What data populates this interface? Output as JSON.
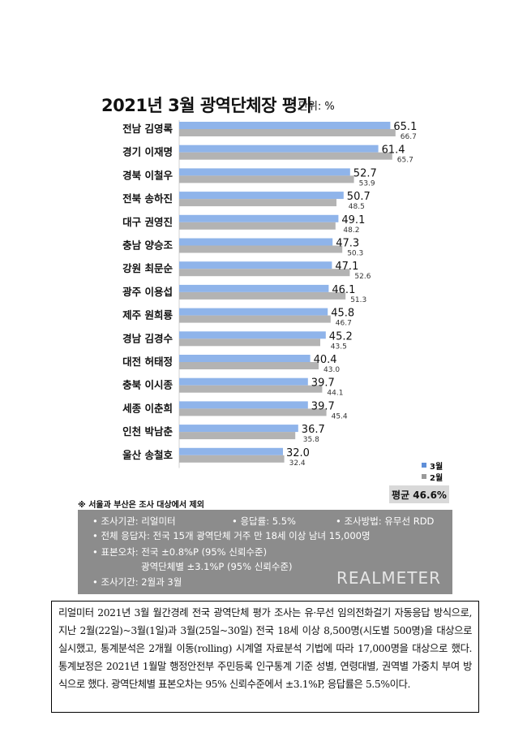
{
  "title": "2021년 3월 광역단체장 평가",
  "unit": "단위: %",
  "note": "※ 서울과 부산은 조사 대상에서 제외",
  "average": "평균 46.6%",
  "colors": {
    "march": "#8fb4ea",
    "february": "#b3b3b3",
    "info_bg": "#8c8c8c"
  },
  "legend": {
    "march": "3월",
    "february": "2월"
  },
  "chart_data": {
    "type": "bar",
    "orientation": "horizontal",
    "categories": [
      "전남 김영록",
      "경기 이재명",
      "경북 이철우",
      "전북 송하진",
      "대구 권영진",
      "충남 양승조",
      "강원 최문순",
      "광주 이용섭",
      "제주 원희룡",
      "경남 김경수",
      "대전 허태정",
      "충북 이시종",
      "세종 이춘희",
      "인천 박남춘",
      "울산 송철호"
    ],
    "series": [
      {
        "name": "3월",
        "values": [
          65.1,
          61.4,
          52.7,
          50.7,
          49.1,
          47.3,
          47.1,
          46.1,
          45.8,
          45.2,
          40.4,
          39.7,
          39.7,
          36.7,
          32.0
        ],
        "labels": [
          "65.1",
          "61.4",
          "52.7",
          "50.7",
          "49.1",
          "47.3",
          "47.1",
          "46.1",
          "45.8",
          "45.2",
          "40.4",
          "39.7",
          "39.7",
          "36.7",
          "32.0"
        ]
      },
      {
        "name": "2월",
        "values": [
          66.7,
          65.7,
          53.9,
          48.5,
          48.2,
          50.3,
          52.6,
          51.3,
          46.7,
          43.5,
          43.0,
          44.1,
          45.4,
          35.8,
          32.4
        ],
        "labels": [
          "66.7",
          "65.7",
          "53.9",
          "48.5",
          "48.2",
          "50.3",
          "52.6",
          "51.3",
          "46.7",
          "43.5",
          "43.0",
          "44.1",
          "45.4",
          "35.8",
          "32.4"
        ]
      }
    ],
    "xlim": [
      0,
      70
    ],
    "grid": false,
    "legend_position": "bottom-right"
  },
  "info": {
    "institution": "조사기관: 리얼미터",
    "response_rate": "응답률: 5.5%",
    "method": "조사방법: 유무선 RDD",
    "respondents": "전체 응답자: 전국 15개 광역단체 거주 만 18세 이상 남녀 15,000명",
    "error_national": "표본오차: 전국 ±0.8%P (95% 신뢰수준)",
    "error_region": "광역단체별 ±3.1%P (95% 신뢰수준)",
    "period": "조사기간: 2월과 3월",
    "logo": "REALMETER"
  },
  "description": "리얼미터 2021년 3월 월간경례 전국 광역단체 평가 조사는 유·무선 임의전화걸기 자동응답 방식으로, 지난 2월(22일)~3월(1일)과 3월(25일~30일) 전국 18세 이상 8,500명(시도별 500명)을 대상으로 실시했고, 통계분석은 2개월 이동(rolling) 시계열 자료분석 기법에 따라 17,000명을 대상으로 했다. 통계보정은 2021년 1월말 행정안전부 주민등록 인구통계 기준 성별, 연령대별, 권역별 가중치 부여 방식으로 했다. 광역단체별 표본오차는 95% 신뢰수준에서 ±3.1%P, 응답률은 5.5%이다."
}
